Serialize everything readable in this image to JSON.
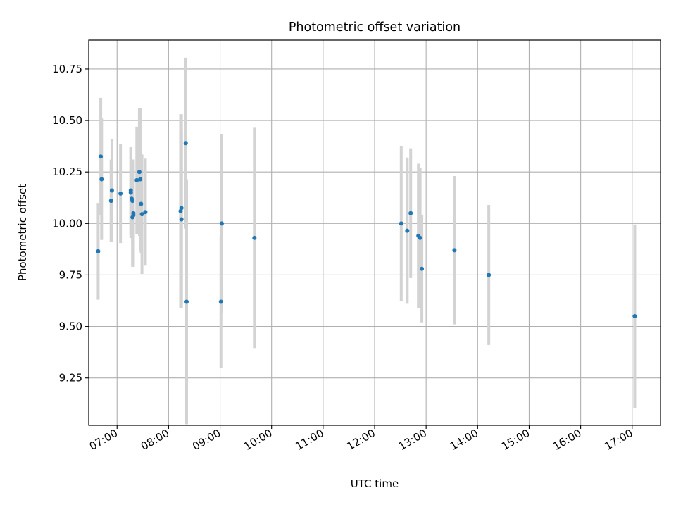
{
  "chart_data": {
    "type": "scatter",
    "title": "Photometric offset variation",
    "xlabel": "UTC time",
    "ylabel": "Photometric offset",
    "grid": true,
    "xlim": [
      "06:27",
      "17:33"
    ],
    "ylim": [
      9.02,
      10.89
    ],
    "x_ticks": [
      "07:00",
      "08:00",
      "09:00",
      "10:00",
      "11:00",
      "12:00",
      "13:00",
      "14:00",
      "15:00",
      "16:00",
      "17:00"
    ],
    "y_ticks": [
      "9.25",
      "9.50",
      "9.75",
      "10.00",
      "10.25",
      "10.50",
      "10.75"
    ],
    "colors": {
      "points": "#1f77b4",
      "errorbars": "#d3d3d3",
      "grid": "#b0b0b0"
    },
    "series": [
      {
        "points": [
          {
            "x": "06:38",
            "y": 9.865,
            "err": 0.235
          },
          {
            "x": "06:41",
            "y": 10.325,
            "err": 0.285
          },
          {
            "x": "06:42",
            "y": 10.215,
            "err": 0.295
          },
          {
            "x": "06:53",
            "y": 10.11,
            "err": 0.2
          },
          {
            "x": "06:54",
            "y": 10.16,
            "err": 0.25
          },
          {
            "x": "07:04",
            "y": 10.145,
            "err": 0.24
          },
          {
            "x": "07:16",
            "y": 10.15,
            "err": 0.22
          },
          {
            "x": "07:16",
            "y": 10.16,
            "err": 0.21
          },
          {
            "x": "07:17",
            "y": 10.12,
            "err": 0.19
          },
          {
            "x": "07:18",
            "y": 10.11,
            "err": 0.2
          },
          {
            "x": "07:18",
            "y": 10.03,
            "err": 0.24
          },
          {
            "x": "07:19",
            "y": 10.05,
            "err": 0.26
          },
          {
            "x": "07:19",
            "y": 10.04,
            "err": 0.25
          },
          {
            "x": "07:23",
            "y": 10.21,
            "err": 0.26
          },
          {
            "x": "07:26",
            "y": 10.25,
            "err": 0.31
          },
          {
            "x": "07:27",
            "y": 10.215,
            "err": 0.345
          },
          {
            "x": "07:28",
            "y": 10.095,
            "err": 0.24
          },
          {
            "x": "07:29",
            "y": 10.045,
            "err": 0.29
          },
          {
            "x": "07:33",
            "y": 10.055,
            "err": 0.26
          },
          {
            "x": "08:14",
            "y": 10.06,
            "err": 0.47
          },
          {
            "x": "08:15",
            "y": 10.075,
            "err": 0.455
          },
          {
            "x": "08:15",
            "y": 10.02,
            "err": 0.43
          },
          {
            "x": "08:20",
            "y": 10.39,
            "err": 0.415
          },
          {
            "x": "08:21",
            "y": 9.62,
            "err": 0.595
          },
          {
            "x": "09:01",
            "y": 9.62,
            "err": 0.32
          },
          {
            "x": "09:02",
            "y": 10.0,
            "err": 0.435
          },
          {
            "x": "09:40",
            "y": 9.93,
            "err": 0.535
          },
          {
            "x": "12:31",
            "y": 10.0,
            "err": 0.375
          },
          {
            "x": "12:38",
            "y": 9.965,
            "err": 0.355
          },
          {
            "x": "12:42",
            "y": 10.05,
            "err": 0.315
          },
          {
            "x": "12:51",
            "y": 9.94,
            "err": 0.35
          },
          {
            "x": "12:53",
            "y": 9.93,
            "err": 0.34
          },
          {
            "x": "12:55",
            "y": 9.78,
            "err": 0.26
          },
          {
            "x": "13:33",
            "y": 9.87,
            "err": 0.36
          },
          {
            "x": "14:13",
            "y": 9.75,
            "err": 0.34
          },
          {
            "x": "17:03",
            "y": 9.55,
            "err": 0.445
          }
        ]
      }
    ]
  }
}
